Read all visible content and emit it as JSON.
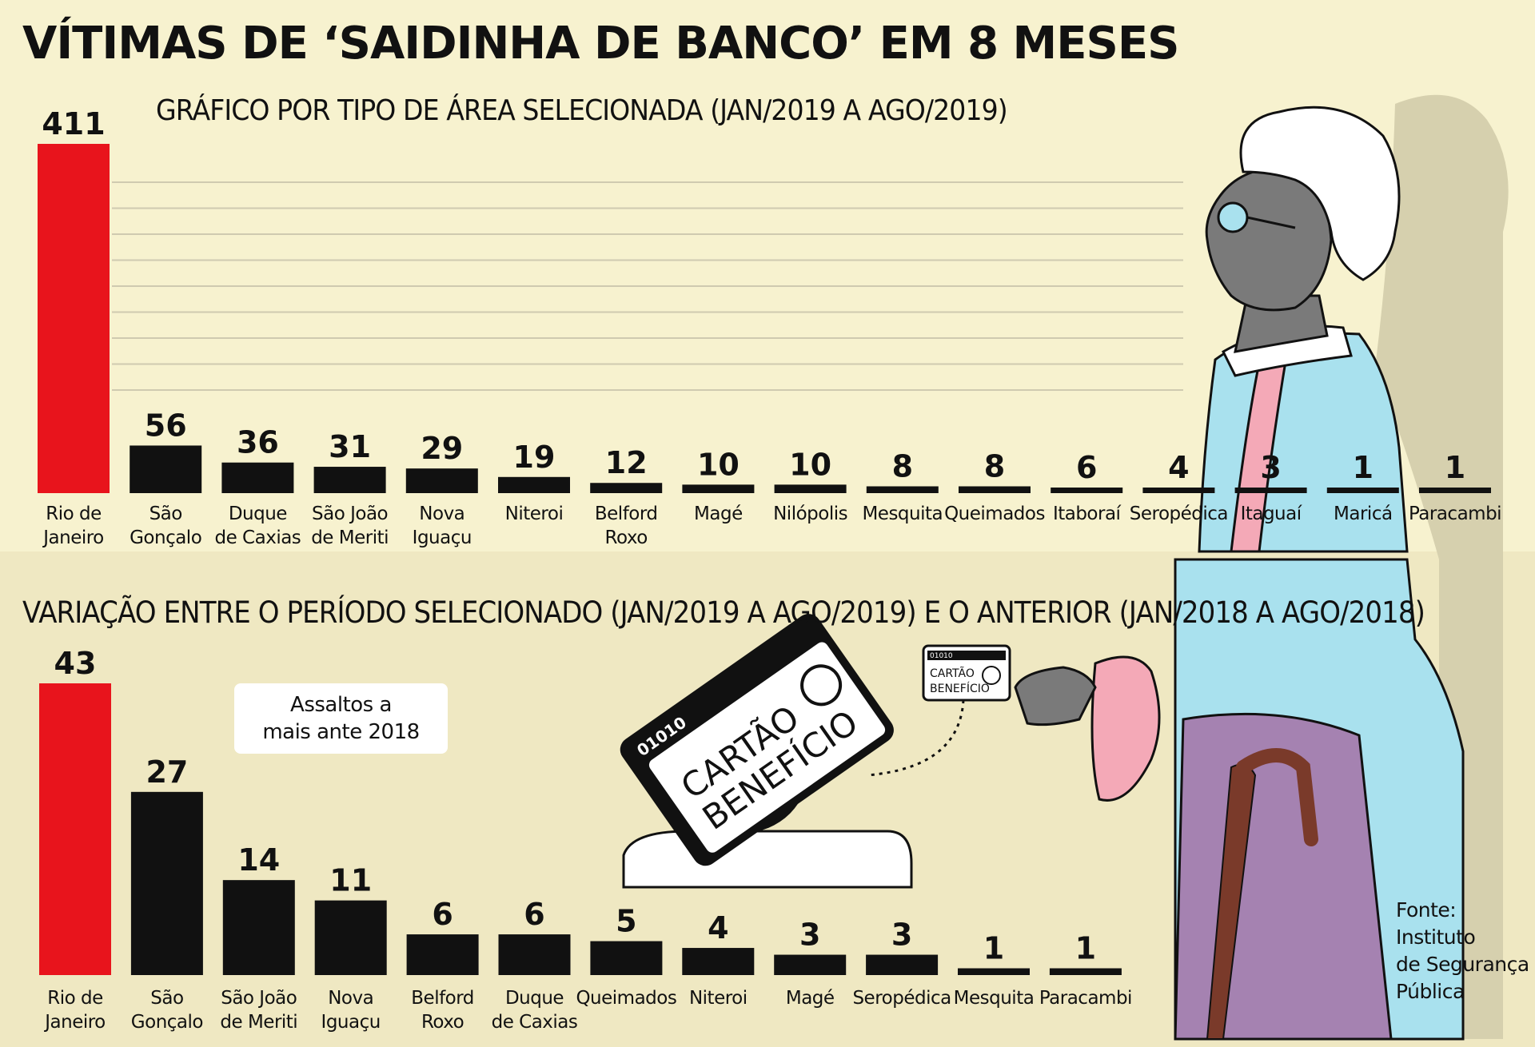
{
  "title": "VÍTIMAS DE ‘SAIDINHA DE BANCO’ EM 8 MESES",
  "callout": [
    "Assaltos a",
    "mais ante 2018"
  ],
  "source": [
    "Fonte:",
    "Instituto",
    "de Segurança",
    "Pública"
  ],
  "card_labels": {
    "small_digits": "01010",
    "small_line1": "CARTÃO",
    "small_line2": "BENEFÍCIO",
    "big_digits": "01010",
    "big_line1": "CARTÃO",
    "big_line2": "BENEFÍCIO"
  },
  "colors": {
    "highlight": "#e8141c",
    "bar": "#111111",
    "background": "#f7f2cf",
    "background_lower": "#efe8c2"
  },
  "chart_data": [
    {
      "type": "bar",
      "title": "GRÁFICO POR TIPO DE ÁREA SELECIONADA (JAN/2019 A AGO/2019)",
      "categories": [
        [
          "Rio de",
          "Janeiro"
        ],
        [
          "São",
          "Gonçalo"
        ],
        [
          "Duque",
          "de Caxias"
        ],
        [
          "São João",
          "de Meriti"
        ],
        [
          "Nova",
          "Iguaçu"
        ],
        [
          "Niteroi"
        ],
        [
          "Belford",
          "Roxo"
        ],
        [
          "Magé"
        ],
        [
          "Nilópolis"
        ],
        [
          "Mesquita"
        ],
        [
          "Queimados"
        ],
        [
          "Itaboraí"
        ],
        [
          "Seropédica"
        ],
        [
          "Itaguaí"
        ],
        [
          "Maricá"
        ],
        [
          "Paracambi"
        ]
      ],
      "values": [
        411,
        56,
        36,
        31,
        29,
        19,
        12,
        10,
        10,
        8,
        8,
        6,
        4,
        3,
        1,
        1
      ],
      "highlight_index": 0,
      "grid": true,
      "xlabel": "",
      "ylabel": ""
    },
    {
      "type": "bar",
      "title": "VARIAÇÃO ENTRE O PERÍODO SELECIONADO (JAN/2019 A AGO/2019) E O ANTERIOR (JAN/2018 A AGO/2018)",
      "categories": [
        [
          "Rio de",
          "Janeiro"
        ],
        [
          "São",
          "Gonçalo"
        ],
        [
          "São João",
          "de Meriti"
        ],
        [
          "Nova",
          "Iguaçu"
        ],
        [
          "Belford",
          "Roxo"
        ],
        [
          "Duque",
          "de Caxias"
        ],
        [
          "Queimados"
        ],
        [
          "Niteroi"
        ],
        [
          "Magé"
        ],
        [
          "Seropédica"
        ],
        [
          "Mesquita"
        ],
        [
          "Paracambi"
        ]
      ],
      "values": [
        43,
        27,
        14,
        11,
        6,
        6,
        5,
        4,
        3,
        3,
        1,
        1
      ],
      "highlight_index": 0,
      "grid": false,
      "xlabel": "",
      "ylabel": ""
    }
  ]
}
